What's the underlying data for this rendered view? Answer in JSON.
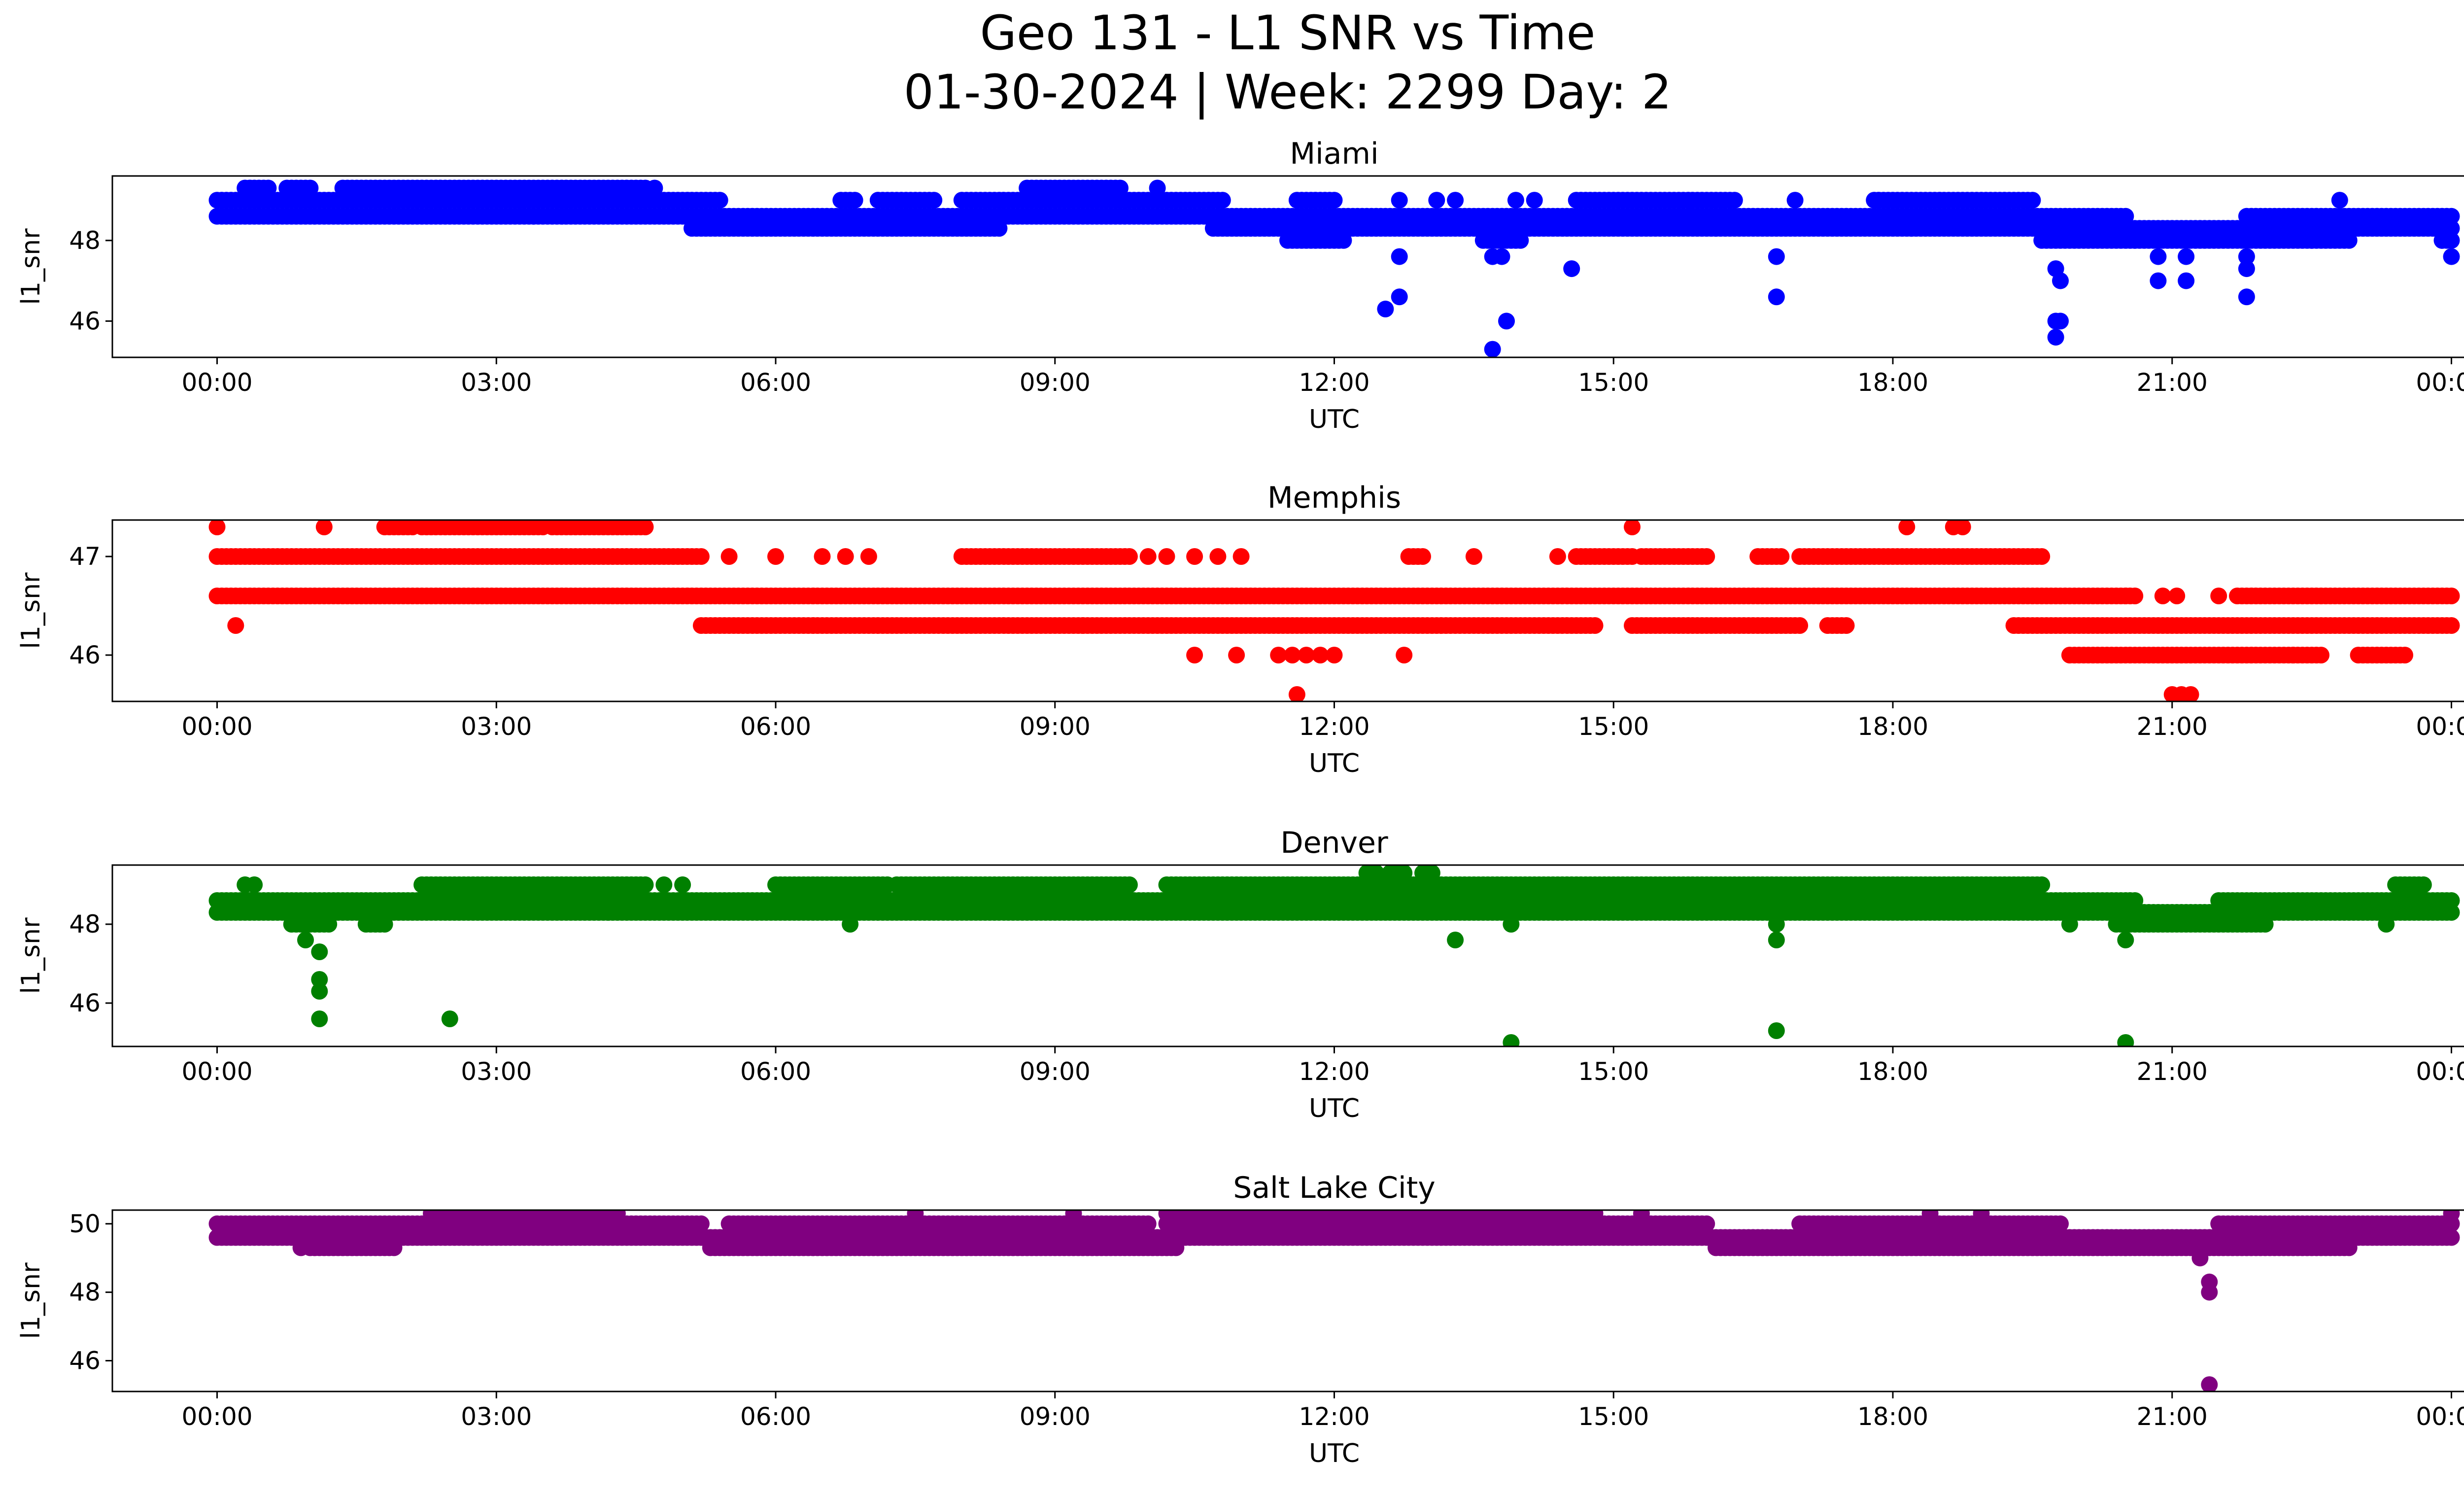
{
  "figure": {
    "title_line1": "Geo 131 - L1 SNR vs Time",
    "title_line2": "01-30-2024 | Week: 2299 Day: 2"
  },
  "chart_data": [
    {
      "type": "scatter",
      "title": "Miami",
      "xlabel": "UTC",
      "ylabel": "l1_snr",
      "color": "#0000ff",
      "x_ticks": [
        "00:00",
        "03:00",
        "06:00",
        "09:00",
        "12:00",
        "15:00",
        "18:00",
        "21:00",
        "00:00"
      ],
      "xlim": [
        "00:00",
        "24:00"
      ],
      "y_ticks": [
        46,
        48
      ],
      "ylim": [
        45.1,
        49.6
      ],
      "levels": [
        {
          "y": 49.3,
          "ranges": [
            [
              0.3,
              0.55
            ],
            [
              0.75,
              1.0
            ],
            [
              1.35,
              4.6
            ],
            [
              8.7,
              9.7
            ]
          ]
        },
        {
          "y": 49.0,
          "ranges": [
            [
              0.0,
              5.4
            ],
            [
              6.7,
              6.85
            ],
            [
              7.1,
              7.7
            ],
            [
              8.0,
              10.8
            ],
            [
              11.6,
              12.0
            ],
            [
              14.6,
              16.3
            ],
            [
              17.8,
              19.5
            ]
          ]
        },
        {
          "y": 48.6,
          "ranges": [
            [
              0.0,
              10.8
            ],
            [
              10.8,
              20.5
            ],
            [
              21.8,
              24.0
            ]
          ]
        },
        {
          "y": 48.3,
          "ranges": [
            [
              5.1,
              8.4
            ],
            [
              10.7,
              24.0
            ]
          ]
        },
        {
          "y": 48.0,
          "ranges": [
            [
              11.5,
              12.1
            ],
            [
              13.6,
              14.0
            ],
            [
              19.6,
              20.6
            ],
            [
              20.6,
              22.5
            ],
            [
              22.5,
              22.9
            ],
            [
              23.9,
              24.0
            ]
          ]
        }
      ],
      "outliers": [
        {
          "x": 12.55,
          "y": 46.3
        },
        {
          "x": 12.7,
          "y": 46.6
        },
        {
          "x": 12.7,
          "y": 47.6
        },
        {
          "x": 13.7,
          "y": 45.3
        },
        {
          "x": 13.7,
          "y": 47.6
        },
        {
          "x": 13.85,
          "y": 46.0
        },
        {
          "x": 13.8,
          "y": 47.6
        },
        {
          "x": 14.55,
          "y": 47.3
        },
        {
          "x": 16.75,
          "y": 46.6
        },
        {
          "x": 16.75,
          "y": 47.6
        },
        {
          "x": 19.75,
          "y": 45.6
        },
        {
          "x": 19.75,
          "y": 46.0
        },
        {
          "x": 19.8,
          "y": 46.0
        },
        {
          "x": 19.75,
          "y": 47.3
        },
        {
          "x": 19.8,
          "y": 47.0
        },
        {
          "x": 20.85,
          "y": 47.0
        },
        {
          "x": 20.85,
          "y": 47.6
        },
        {
          "x": 21.15,
          "y": 47.0
        },
        {
          "x": 21.15,
          "y": 47.6
        },
        {
          "x": 21.8,
          "y": 46.6
        },
        {
          "x": 21.8,
          "y": 47.3
        },
        {
          "x": 21.8,
          "y": 47.6
        },
        {
          "x": 24.0,
          "y": 47.6
        },
        {
          "x": 23.9,
          "y": 48.0
        },
        {
          "x": 3.4,
          "y": 48.6
        },
        {
          "x": 4.7,
          "y": 49.3
        },
        {
          "x": 10.1,
          "y": 49.3
        },
        {
          "x": 12.7,
          "y": 49.0
        },
        {
          "x": 13.1,
          "y": 49.0
        },
        {
          "x": 13.3,
          "y": 49.0
        },
        {
          "x": 13.95,
          "y": 49.0
        },
        {
          "x": 14.15,
          "y": 49.0
        },
        {
          "x": 16.95,
          "y": 49.0
        },
        {
          "x": 22.8,
          "y": 49.0
        },
        {
          "x": 16.1,
          "y": 48.3
        },
        {
          "x": 18.2,
          "y": 48.3
        }
      ]
    },
    {
      "type": "scatter",
      "title": "Memphis",
      "xlabel": "UTC",
      "ylabel": "l1_snr",
      "color": "#ff0000",
      "x_ticks": [
        "00:00",
        "03:00",
        "06:00",
        "09:00",
        "12:00",
        "15:00",
        "18:00",
        "21:00",
        "00:00"
      ],
      "xlim": [
        "00:00",
        "24:00"
      ],
      "y_ticks": [
        46,
        47
      ],
      "ylim": [
        45.53,
        47.37
      ],
      "levels": [
        {
          "y": 47.3,
          "ranges": [
            [
              1.8,
              2.1
            ],
            [
              2.2,
              3.5
            ],
            [
              3.6,
              4.6
            ]
          ]
        },
        {
          "y": 47.0,
          "ranges": [
            [
              0.0,
              5.2
            ],
            [
              8.0,
              9.8
            ],
            [
              12.8,
              12.95
            ],
            [
              14.6,
              15.2
            ],
            [
              15.3,
              16.0
            ],
            [
              16.55,
              16.8
            ],
            [
              17.0,
              19.6
            ]
          ]
        },
        {
          "y": 46.6,
          "ranges": [
            [
              0.0,
              20.5
            ],
            [
              20.5,
              20.6
            ],
            [
              21.7,
              24.0
            ]
          ]
        },
        {
          "y": 46.3,
          "ranges": [
            [
              5.2,
              9.3
            ],
            [
              9.3,
              14.8
            ],
            [
              15.2,
              17.0
            ],
            [
              17.3,
              17.5
            ],
            [
              19.3,
              24.0
            ]
          ]
        },
        {
          "y": 46.0,
          "ranges": [
            [
              19.9,
              22.3
            ],
            [
              22.3,
              22.6
            ],
            [
              23.0,
              23.5
            ]
          ]
        }
      ],
      "outliers": [
        {
          "x": 0.0,
          "y": 47.3
        },
        {
          "x": 1.15,
          "y": 47.3
        },
        {
          "x": 15.2,
          "y": 47.3
        },
        {
          "x": 18.15,
          "y": 47.3
        },
        {
          "x": 18.65,
          "y": 47.3
        },
        {
          "x": 18.75,
          "y": 47.3
        },
        {
          "x": 0.2,
          "y": 46.3
        },
        {
          "x": 5.5,
          "y": 47.0
        },
        {
          "x": 6.0,
          "y": 47.0
        },
        {
          "x": 6.5,
          "y": 47.0
        },
        {
          "x": 6.75,
          "y": 47.0
        },
        {
          "x": 7.0,
          "y": 47.0
        },
        {
          "x": 10.0,
          "y": 47.0
        },
        {
          "x": 10.2,
          "y": 47.0
        },
        {
          "x": 10.5,
          "y": 47.0
        },
        {
          "x": 10.75,
          "y": 47.0
        },
        {
          "x": 11.0,
          "y": 47.0
        },
        {
          "x": 13.5,
          "y": 47.0
        },
        {
          "x": 14.4,
          "y": 47.0
        },
        {
          "x": 10.5,
          "y": 46.0
        },
        {
          "x": 10.95,
          "y": 46.0
        },
        {
          "x": 11.4,
          "y": 46.0
        },
        {
          "x": 11.55,
          "y": 46.0
        },
        {
          "x": 11.7,
          "y": 46.0
        },
        {
          "x": 11.85,
          "y": 46.0
        },
        {
          "x": 12.0,
          "y": 46.0
        },
        {
          "x": 12.75,
          "y": 46.0
        },
        {
          "x": 11.6,
          "y": 45.6
        },
        {
          "x": 21.0,
          "y": 45.6
        },
        {
          "x": 21.1,
          "y": 45.6
        },
        {
          "x": 21.2,
          "y": 45.6
        },
        {
          "x": 20.9,
          "y": 46.6
        },
        {
          "x": 21.05,
          "y": 46.6
        },
        {
          "x": 21.5,
          "y": 46.6
        }
      ]
    },
    {
      "type": "scatter",
      "title": "Denver",
      "xlabel": "UTC",
      "ylabel": "l1_snr",
      "color": "#008000",
      "x_ticks": [
        "00:00",
        "03:00",
        "06:00",
        "09:00",
        "12:00",
        "15:00",
        "18:00",
        "21:00",
        "00:00"
      ],
      "xlim": [
        "00:00",
        "24:00"
      ],
      "y_ticks": [
        46,
        48
      ],
      "ylim": [
        44.9,
        49.5
      ],
      "levels": [
        {
          "y": 49.3,
          "ranges": [
            [
              12.35,
              12.45
            ],
            [
              12.6,
              12.75
            ],
            [
              12.95,
              13.05
            ]
          ]
        },
        {
          "y": 49.0,
          "ranges": [
            [
              2.2,
              4.6
            ],
            [
              6.0,
              7.2
            ],
            [
              7.3,
              9.8
            ],
            [
              10.2,
              19.6
            ],
            [
              23.4,
              23.7
            ]
          ]
        },
        {
          "y": 48.6,
          "ranges": [
            [
              0.0,
              20.6
            ],
            [
              21.5,
              24.0
            ]
          ]
        },
        {
          "y": 48.3,
          "ranges": [
            [
              0.0,
              24.0
            ]
          ]
        },
        {
          "y": 48.0,
          "ranges": [
            [
              0.8,
              1.2
            ],
            [
              1.6,
              1.8
            ],
            [
              20.4,
              22.0
            ]
          ]
        }
      ],
      "outliers": [
        {
          "x": 0.3,
          "y": 49.0
        },
        {
          "x": 0.4,
          "y": 49.0
        },
        {
          "x": 0.95,
          "y": 47.6
        },
        {
          "x": 1.1,
          "y": 47.3
        },
        {
          "x": 1.1,
          "y": 46.6
        },
        {
          "x": 1.1,
          "y": 46.3
        },
        {
          "x": 1.1,
          "y": 45.6
        },
        {
          "x": 2.5,
          "y": 45.6
        },
        {
          "x": 6.8,
          "y": 48.0
        },
        {
          "x": 13.3,
          "y": 47.6
        },
        {
          "x": 13.9,
          "y": 48.0
        },
        {
          "x": 13.9,
          "y": 45.0
        },
        {
          "x": 16.75,
          "y": 48.0
        },
        {
          "x": 16.75,
          "y": 47.6
        },
        {
          "x": 16.75,
          "y": 45.3
        },
        {
          "x": 20.5,
          "y": 47.6
        },
        {
          "x": 20.5,
          "y": 45.0
        },
        {
          "x": 19.9,
          "y": 48.0
        },
        {
          "x": 23.3,
          "y": 48.0
        },
        {
          "x": 4.2,
          "y": 48.3
        },
        {
          "x": 4.8,
          "y": 49.0
        },
        {
          "x": 5.0,
          "y": 49.0
        }
      ]
    },
    {
      "type": "scatter",
      "title": "Salt Lake City",
      "xlabel": "UTC",
      "ylabel": "l1_snr",
      "color": "#800080",
      "x_ticks": [
        "00:00",
        "03:00",
        "06:00",
        "09:00",
        "12:00",
        "15:00",
        "18:00",
        "21:00",
        "00:00"
      ],
      "xlim": [
        "00:00",
        "24:00"
      ],
      "y_ticks": [
        46,
        48,
        50
      ],
      "ylim": [
        45.1,
        50.4
      ],
      "levels": [
        {
          "y": 50.3,
          "ranges": [
            [
              2.3,
              4.3
            ],
            [
              10.2,
              14.8
            ]
          ]
        },
        {
          "y": 50.0,
          "ranges": [
            [
              0.0,
              5.2
            ],
            [
              5.5,
              10.0
            ],
            [
              10.2,
              16.0
            ],
            [
              17.0,
              19.8
            ],
            [
              21.5,
              24.0
            ]
          ]
        },
        {
          "y": 49.6,
          "ranges": [
            [
              0.0,
              24.0
            ]
          ]
        },
        {
          "y": 49.3,
          "ranges": [
            [
              1.0,
              1.9
            ],
            [
              5.3,
              10.3
            ],
            [
              16.1,
              20.5
            ],
            [
              20.5,
              22.9
            ]
          ]
        }
      ],
      "outliers": [
        {
          "x": 0.9,
          "y": 49.3
        },
        {
          "x": 2.4,
          "y": 50.3
        },
        {
          "x": 7.5,
          "y": 50.3
        },
        {
          "x": 9.2,
          "y": 50.3
        },
        {
          "x": 15.3,
          "y": 50.3
        },
        {
          "x": 18.4,
          "y": 50.3
        },
        {
          "x": 18.95,
          "y": 50.3
        },
        {
          "x": 21.3,
          "y": 49.0
        },
        {
          "x": 21.4,
          "y": 48.3
        },
        {
          "x": 21.4,
          "y": 48.0
        },
        {
          "x": 21.4,
          "y": 45.3
        },
        {
          "x": 24.0,
          "y": 50.3
        }
      ]
    }
  ]
}
